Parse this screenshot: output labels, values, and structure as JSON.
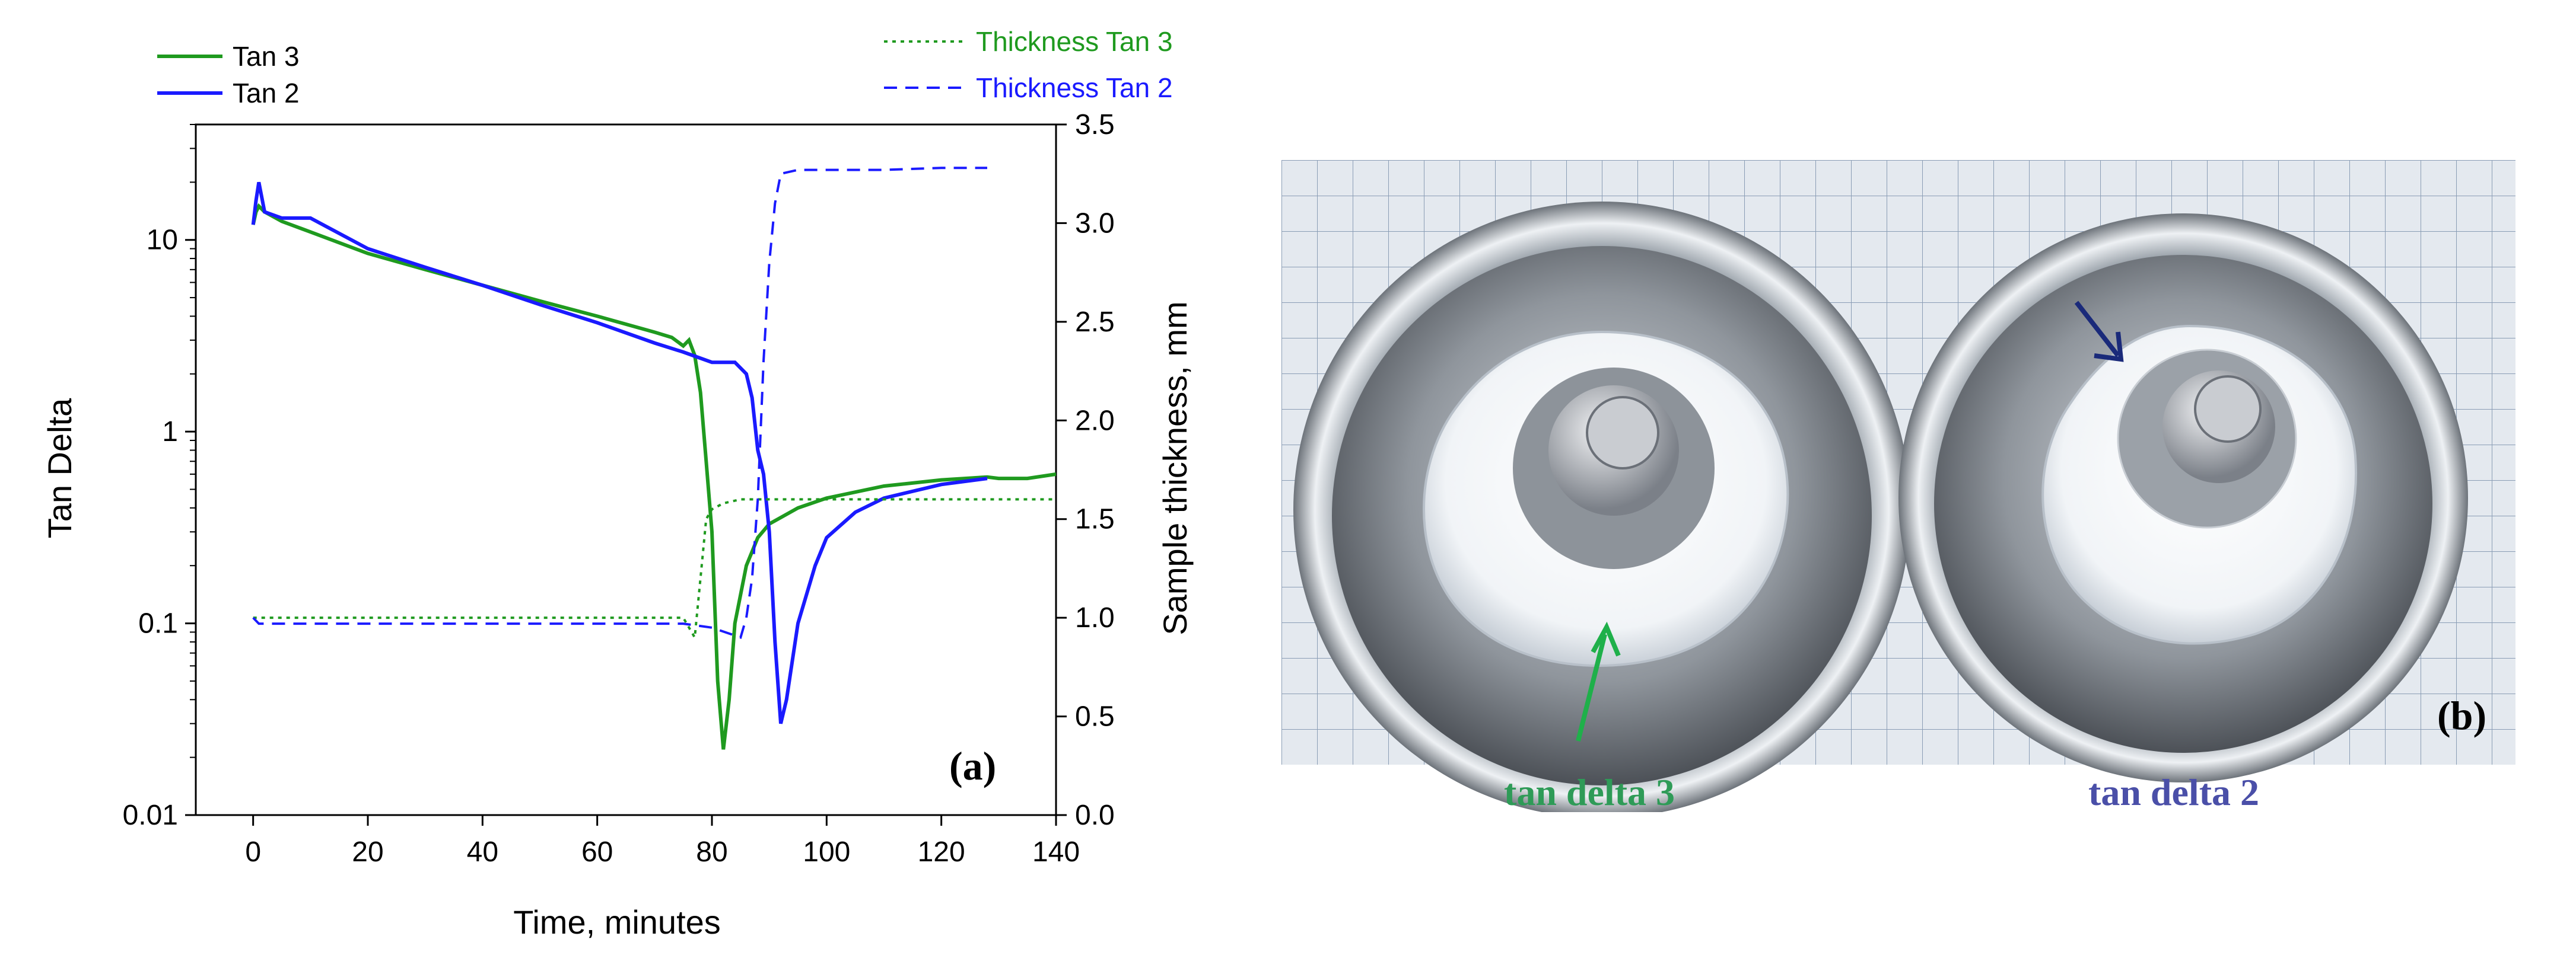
{
  "chart_data": {
    "type": "line",
    "panel_label": "(a)",
    "xlabel": "Time, minutes",
    "ylabel_left": "Tan Delta",
    "ylabel_right": "Sample thickness, mm",
    "xlim": [
      -10,
      140
    ],
    "ylim_left": [
      0.01,
      40
    ],
    "ylim_left_scale": "log",
    "ylim_right": [
      0.0,
      3.5
    ],
    "x_ticks": [
      0,
      20,
      40,
      60,
      80,
      100,
      120,
      140
    ],
    "x_tick_labels": [
      "0",
      "20",
      "40",
      "60",
      "80",
      "100",
      "120",
      "140"
    ],
    "y_left_ticks": [
      0.01,
      0.1,
      1,
      10
    ],
    "y_left_tick_labels": [
      "0.01",
      "0.1",
      "1",
      "10"
    ],
    "y_right_ticks": [
      0.0,
      0.5,
      1.0,
      1.5,
      2.0,
      2.5,
      3.0,
      3.5
    ],
    "y_right_tick_labels": [
      "0.0",
      "0.5",
      "1.0",
      "1.5",
      "2.0",
      "2.5",
      "3.0",
      "3.5"
    ],
    "legend_left": "top-left",
    "legend_right": "top-right",
    "series": [
      {
        "name": "Tan 3",
        "axis": "left",
        "style": "solid",
        "color": "#1f9a1f",
        "x": [
          0,
          0.5,
          1,
          2,
          5,
          10,
          20,
          30,
          40,
          50,
          60,
          70,
          73,
          75,
          76,
          77,
          78,
          79,
          80,
          81,
          82,
          83,
          84,
          86,
          88,
          90,
          95,
          100,
          110,
          120,
          128,
          130,
          135,
          140
        ],
        "y": [
          12,
          14,
          15,
          14,
          12.5,
          11,
          8.5,
          7,
          5.8,
          4.8,
          4.0,
          3.3,
          3.1,
          2.8,
          3.0,
          2.5,
          1.6,
          0.7,
          0.3,
          0.05,
          0.022,
          0.04,
          0.1,
          0.2,
          0.28,
          0.33,
          0.4,
          0.45,
          0.52,
          0.56,
          0.58,
          0.57,
          0.57,
          0.6
        ]
      },
      {
        "name": "Tan 2",
        "axis": "left",
        "style": "solid",
        "color": "#1a1aff",
        "x": [
          0,
          0.5,
          1,
          2,
          5,
          10,
          20,
          30,
          40,
          50,
          60,
          70,
          75,
          80,
          82,
          84,
          86,
          87,
          88,
          89,
          90,
          91,
          92,
          93,
          95,
          98,
          100,
          105,
          110,
          120,
          128
        ],
        "y": [
          12,
          16,
          20,
          14,
          13,
          13,
          9,
          7.2,
          5.8,
          4.6,
          3.7,
          2.9,
          2.6,
          2.3,
          2.3,
          2.3,
          2.0,
          1.5,
          0.8,
          0.6,
          0.3,
          0.08,
          0.03,
          0.04,
          0.1,
          0.2,
          0.28,
          0.38,
          0.45,
          0.53,
          0.57
        ]
      },
      {
        "name": "Thickness Tan 3",
        "axis": "right",
        "style": "dotted",
        "color": "#1f9a1f",
        "x": [
          0,
          10,
          20,
          40,
          60,
          70,
          75,
          77,
          78,
          79,
          80,
          82,
          85,
          90,
          100,
          110,
          120,
          128,
          135,
          140
        ],
        "y": [
          1.0,
          1.0,
          1.0,
          1.0,
          1.0,
          1.0,
          1.0,
          0.9,
          1.2,
          1.5,
          1.55,
          1.58,
          1.6,
          1.6,
          1.6,
          1.6,
          1.6,
          1.6,
          1.6,
          1.6
        ]
      },
      {
        "name": "Thickness Tan 2",
        "axis": "right",
        "style": "dashed",
        "color": "#1a1aff",
        "x": [
          0,
          1,
          10,
          20,
          40,
          60,
          70,
          75,
          80,
          85,
          86,
          87,
          88,
          89,
          90,
          91,
          92,
          95,
          100,
          110,
          120,
          128
        ],
        "y": [
          1.0,
          0.97,
          0.97,
          0.97,
          0.97,
          0.97,
          0.97,
          0.97,
          0.95,
          0.9,
          1.0,
          1.2,
          1.6,
          2.3,
          2.8,
          3.1,
          3.25,
          3.27,
          3.27,
          3.27,
          3.28,
          3.28
        ]
      }
    ]
  },
  "photo_panel": {
    "panel_label": "(b)",
    "left_caption": "tan delta 3",
    "right_caption": "tan delta 2",
    "left_caption_color": "#2e9b57",
    "right_caption_color": "#4a4fa8"
  }
}
